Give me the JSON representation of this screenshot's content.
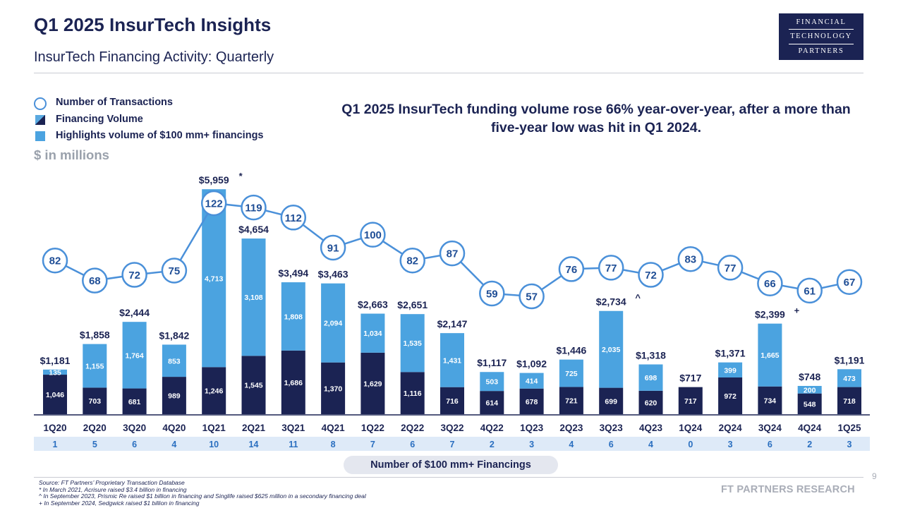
{
  "header": {
    "title": "Q1 2025 InsurTech Insights",
    "subtitle": "InsurTech Financing Activity: Quarterly",
    "logo_lines": [
      "FINANCIAL",
      "TECHNOLOGY",
      "PARTNERS"
    ]
  },
  "legend": {
    "transactions": "Number of Transactions",
    "volume": "Financing Volume",
    "highlight": "Highlights volume of $100 mm+ financings"
  },
  "units_label": "$ in millions",
  "headline": "Q1 2025 InsurTech funding volume rose 66% year-over-year, after a more than five-year low was hit in Q1 2024.",
  "colors": {
    "navy": "#1b2353",
    "highlight_blue": "#4ba3e0",
    "line_blue": "#4a90d9",
    "count_row_bg": "#deeaf8"
  },
  "chart_data": {
    "type": "bar",
    "categories": [
      "1Q20",
      "2Q20",
      "3Q20",
      "4Q20",
      "1Q21",
      "2Q21",
      "3Q21",
      "4Q21",
      "1Q22",
      "2Q22",
      "3Q22",
      "4Q22",
      "1Q23",
      "2Q23",
      "3Q23",
      "4Q23",
      "1Q24",
      "2Q24",
      "3Q24",
      "4Q24",
      "1Q25"
    ],
    "total_labels": [
      "$1,181",
      "$1,858",
      "$2,444",
      "$1,842",
      "$5,959",
      "$4,654",
      "$3,494",
      "$3,463",
      "$2,663",
      "$2,651",
      "$2,147",
      "$1,117",
      "$1,092",
      "$1,446",
      "$2,734",
      "$1,318",
      "$717",
      "$1,371",
      "$2,399",
      "$748",
      "$1,191"
    ],
    "total_markers": [
      "",
      "",
      "",
      "",
      "*",
      "",
      "",
      "",
      "",
      "",
      "",
      "",
      "",
      "",
      "^",
      "",
      "",
      "",
      "+",
      "",
      ""
    ],
    "series": [
      {
        "values": [
          1046,
          703,
          681,
          989,
          1246,
          1545,
          1686,
          1370,
          1629,
          1116,
          716,
          614,
          678,
          721,
          699,
          620,
          717,
          972,
          734,
          548,
          718
        ]
      },
      {
        "values": [
          135,
          1155,
          1764,
          853,
          4713,
          3108,
          1808,
          2094,
          1034,
          1535,
          1431,
          503,
          414,
          725,
          2035,
          698,
          0,
          399,
          1665,
          200,
          473
        ]
      }
    ],
    "transactions": [
      82,
      68,
      72,
      75,
      122,
      119,
      112,
      91,
      100,
      82,
      87,
      59,
      57,
      76,
      77,
      72,
      83,
      77,
      66,
      61,
      67
    ],
    "large_financings": [
      1,
      5,
      6,
      4,
      10,
      14,
      11,
      8,
      7,
      6,
      7,
      2,
      3,
      4,
      6,
      4,
      0,
      3,
      6,
      2,
      3
    ],
    "large_financings_label": "Number of $100 mm+ Financings"
  },
  "footer": {
    "notes": [
      "Source: FT Partners’ Proprietary Transaction Database",
      "* In March 2021, Acrisure raised $3.4 billion in financing",
      "^ In September 2023, Prismic Re raised $1 billion in financing and Singlife raised $625 million in a secondary financing deal",
      "+ In September 2024, Sedgwick raised $1 billion in financing"
    ],
    "brand": "FT PARTNERS RESEARCH",
    "page_number": "9"
  }
}
